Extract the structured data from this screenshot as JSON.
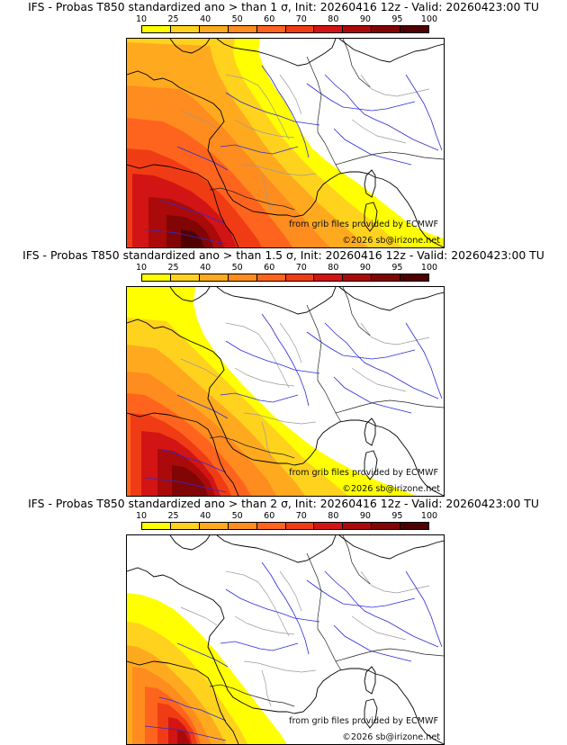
{
  "scale": {
    "labels": [
      "10",
      "25",
      "40",
      "50",
      "60",
      "70",
      "80",
      "90",
      "95",
      "100"
    ],
    "colors": [
      "#ffff00",
      "#ffd21e",
      "#ffaa1e",
      "#ff8c1e",
      "#ff641e",
      "#f03c14",
      "#d21414",
      "#aa0a0a",
      "#820505",
      "#500000"
    ]
  },
  "credits": {
    "grib": "from grib files provided by ECMWF",
    "copyright": "©2026 sb@irizone.net"
  },
  "panels": [
    {
      "title": "IFS - Probas T850  standardized ano > than 1 σ, Init: 20260416 12z - Valid: 20260423:00 TU",
      "threshold": "1 σ",
      "max_probability": 100
    },
    {
      "title": "IFS - Probas T850  standardized ano > than 1.5 σ, Init: 20260416 12z - Valid: 20260423:00 TU",
      "threshold": "1.5 σ",
      "max_probability": 95
    },
    {
      "title": "IFS - Probas T850  standardized ano > than 2 σ, Init: 20260416 12z - Valid: 20260423:00 TU",
      "threshold": "2 σ",
      "max_probability": 80
    }
  ]
}
